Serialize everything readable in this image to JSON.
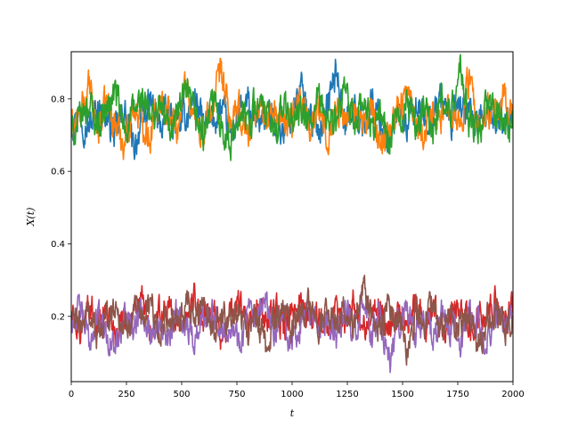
{
  "chart_data": {
    "type": "line",
    "xlabel": "t",
    "ylabel": "X(t)",
    "xlim": [
      0,
      2000
    ],
    "ylim": [
      0.02,
      0.93
    ],
    "grid": false,
    "legend": "none",
    "x_ticks": [
      0,
      250,
      500,
      750,
      1000,
      1250,
      1500,
      1750,
      2000
    ],
    "y_ticks": [
      0.2,
      0.4,
      0.6,
      0.8
    ],
    "x": [
      0,
      40,
      80,
      120,
      160,
      200,
      240,
      280,
      320,
      360,
      400,
      440,
      480,
      520,
      560,
      600,
      640,
      680,
      720,
      760,
      800,
      840,
      880,
      920,
      960,
      1000,
      1040,
      1080,
      1120,
      1160,
      1200,
      1240,
      1280,
      1320,
      1360,
      1400,
      1440,
      1480,
      1520,
      1560,
      1600,
      1640,
      1680,
      1720,
      1760,
      1800,
      1840,
      1880,
      1920,
      1960,
      2000
    ],
    "series": [
      {
        "color": "#1f77b4",
        "values": [
          0.74,
          0.76,
          0.72,
          0.78,
          0.75,
          0.7,
          0.77,
          0.66,
          0.74,
          0.79,
          0.72,
          0.76,
          0.73,
          0.75,
          0.81,
          0.72,
          0.74,
          0.77,
          0.7,
          0.75,
          0.78,
          0.73,
          0.76,
          0.74,
          0.71,
          0.77,
          0.83,
          0.75,
          0.72,
          0.78,
          0.88,
          0.74,
          0.77,
          0.73,
          0.79,
          0.75,
          0.66,
          0.76,
          0.72,
          0.78,
          0.74,
          0.77,
          0.8,
          0.73,
          0.79,
          0.75,
          0.71,
          0.77,
          0.74,
          0.76,
          0.73
        ]
      },
      {
        "color": "#ff7f0e",
        "values": [
          0.72,
          0.75,
          0.83,
          0.71,
          0.79,
          0.73,
          0.68,
          0.78,
          0.74,
          0.7,
          0.81,
          0.76,
          0.72,
          0.85,
          0.74,
          0.71,
          0.78,
          0.87,
          0.73,
          0.76,
          0.7,
          0.79,
          0.74,
          0.77,
          0.72,
          0.75,
          0.81,
          0.73,
          0.76,
          0.7,
          0.78,
          0.74,
          0.79,
          0.72,
          0.76,
          0.68,
          0.73,
          0.77,
          0.82,
          0.75,
          0.71,
          0.78,
          0.74,
          0.8,
          0.72,
          0.86,
          0.7,
          0.77,
          0.75,
          0.81,
          0.76
        ]
      },
      {
        "color": "#2ca02c",
        "values": [
          0.7,
          0.74,
          0.79,
          0.73,
          0.77,
          0.82,
          0.71,
          0.76,
          0.8,
          0.74,
          0.78,
          0.72,
          0.76,
          0.81,
          0.75,
          0.7,
          0.79,
          0.74,
          0.67,
          0.77,
          0.73,
          0.8,
          0.75,
          0.71,
          0.78,
          0.74,
          0.76,
          0.72,
          0.79,
          0.75,
          0.73,
          0.81,
          0.74,
          0.78,
          0.72,
          0.76,
          0.68,
          0.74,
          0.79,
          0.73,
          0.77,
          0.72,
          0.8,
          0.75,
          0.88,
          0.74,
          0.7,
          0.78,
          0.76,
          0.72,
          0.75
        ]
      },
      {
        "color": "#d62728",
        "values": [
          0.2,
          0.15,
          0.24,
          0.18,
          0.22,
          0.16,
          0.21,
          0.19,
          0.25,
          0.14,
          0.2,
          0.23,
          0.17,
          0.21,
          0.26,
          0.18,
          0.22,
          0.15,
          0.2,
          0.24,
          0.17,
          0.21,
          0.19,
          0.23,
          0.16,
          0.2,
          0.25,
          0.18,
          0.22,
          0.15,
          0.21,
          0.19,
          0.24,
          0.17,
          0.2,
          0.23,
          0.16,
          0.21,
          0.19,
          0.25,
          0.18,
          0.22,
          0.15,
          0.2,
          0.24,
          0.17,
          0.21,
          0.19,
          0.26,
          0.18,
          0.22
        ]
      },
      {
        "color": "#9467bd",
        "values": [
          0.18,
          0.22,
          0.13,
          0.2,
          0.16,
          0.1,
          0.21,
          0.17,
          0.24,
          0.15,
          0.19,
          0.12,
          0.22,
          0.18,
          0.14,
          0.2,
          0.23,
          0.16,
          0.19,
          0.13,
          0.21,
          0.17,
          0.24,
          0.15,
          0.2,
          0.12,
          0.18,
          0.22,
          0.16,
          0.19,
          0.14,
          0.21,
          0.17,
          0.23,
          0.15,
          0.2,
          0.07,
          0.18,
          0.22,
          0.14,
          0.19,
          0.16,
          0.21,
          0.17,
          0.13,
          0.2,
          0.18,
          0.11,
          0.22,
          0.16,
          0.19
        ]
      },
      {
        "color": "#8c564b",
        "values": [
          0.2,
          0.17,
          0.22,
          0.14,
          0.19,
          0.23,
          0.16,
          0.21,
          0.18,
          0.25,
          0.15,
          0.2,
          0.17,
          0.22,
          0.19,
          0.26,
          0.16,
          0.21,
          0.18,
          0.23,
          0.15,
          0.2,
          0.11,
          0.19,
          0.22,
          0.17,
          0.2,
          0.24,
          0.16,
          0.21,
          0.18,
          0.23,
          0.17,
          0.29,
          0.2,
          0.16,
          0.22,
          0.19,
          0.12,
          0.21,
          0.18,
          0.24,
          0.16,
          0.2,
          0.17,
          0.22,
          0.1,
          0.19,
          0.21,
          0.16,
          0.2
        ]
      }
    ]
  }
}
